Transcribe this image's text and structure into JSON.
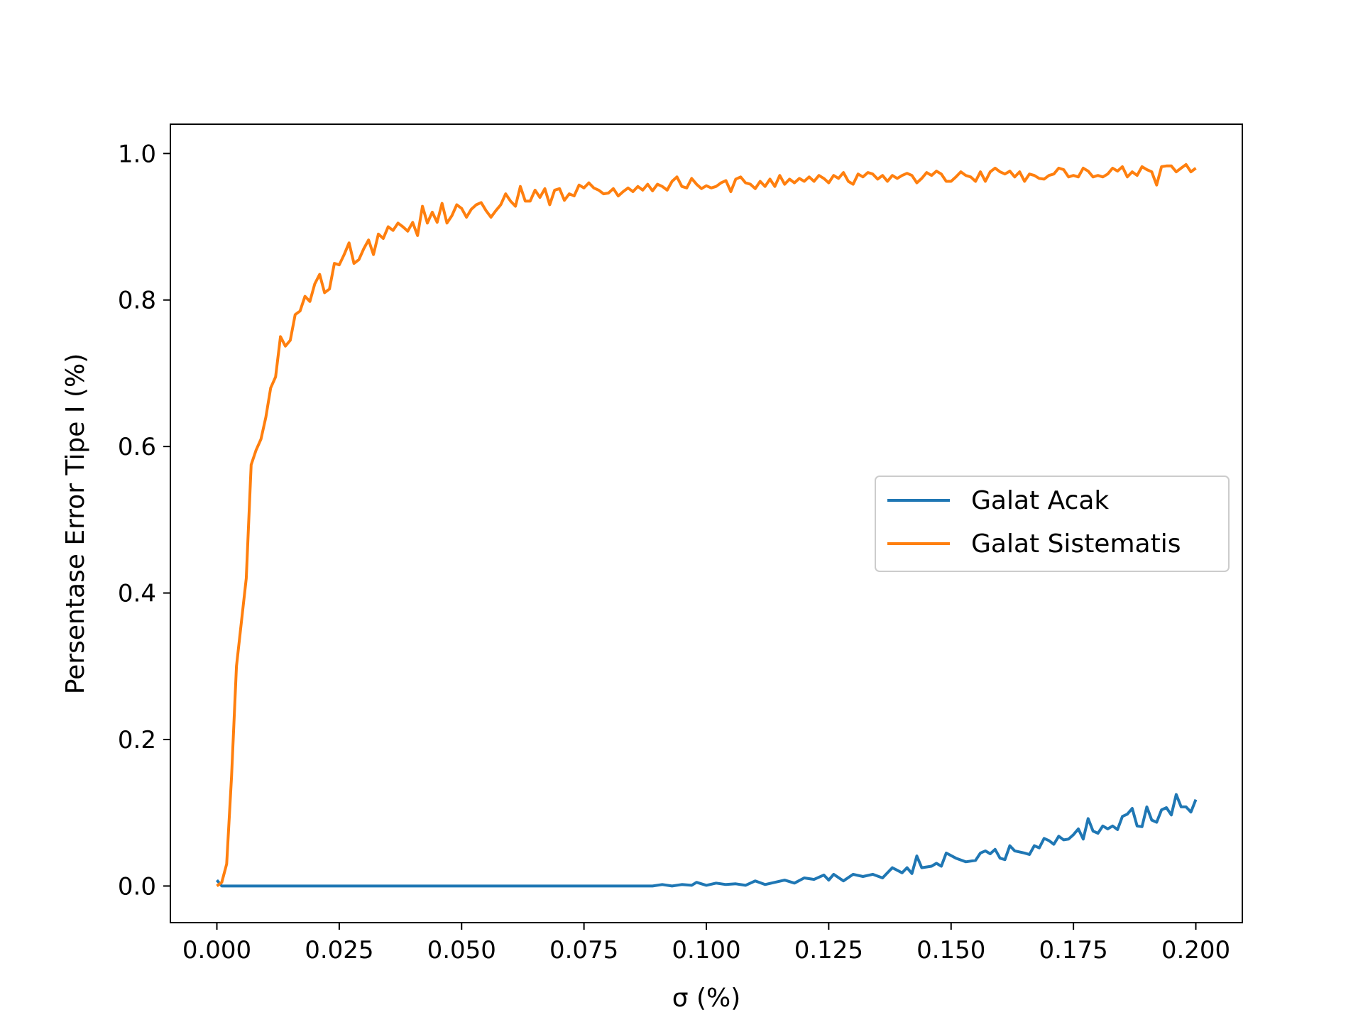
{
  "chart_data": {
    "type": "line",
    "title": "",
    "xlabel": "σ (%)",
    "ylabel": "Persentase Error Tipe I (%)",
    "xlim": [
      -0.0095,
      0.2095
    ],
    "ylim": [
      -0.05,
      1.04
    ],
    "xticks": [
      0.0,
      0.025,
      0.05,
      0.075,
      0.1,
      0.125,
      0.15,
      0.175,
      0.2
    ],
    "xtick_labels": [
      "0.000",
      "0.025",
      "0.050",
      "0.075",
      "0.100",
      "0.125",
      "0.150",
      "0.175",
      "0.200"
    ],
    "yticks": [
      0.0,
      0.2,
      0.4,
      0.6,
      0.8,
      1.0
    ],
    "ytick_labels": [
      "0.0",
      "0.2",
      "0.4",
      "0.6",
      "0.8",
      "1.0"
    ],
    "grid": false,
    "legend_position": "center-right",
    "series": [
      {
        "name": "Galat Acak",
        "color": "#1f77b4",
        "points": [
          [
            0.0,
            0.008
          ],
          [
            0.001,
            0.0
          ],
          [
            0.005,
            0.0
          ],
          [
            0.02,
            0.0
          ],
          [
            0.04,
            0.0
          ],
          [
            0.06,
            0.0
          ],
          [
            0.08,
            0.0
          ],
          [
            0.089,
            0.0
          ],
          [
            0.091,
            0.002
          ],
          [
            0.093,
            0.0
          ],
          [
            0.095,
            0.002
          ],
          [
            0.097,
            0.001
          ],
          [
            0.098,
            0.005
          ],
          [
            0.1,
            0.001
          ],
          [
            0.102,
            0.004
          ],
          [
            0.104,
            0.002
          ],
          [
            0.106,
            0.003
          ],
          [
            0.108,
            0.001
          ],
          [
            0.11,
            0.007
          ],
          [
            0.112,
            0.002
          ],
          [
            0.114,
            0.005
          ],
          [
            0.116,
            0.008
          ],
          [
            0.118,
            0.004
          ],
          [
            0.12,
            0.011
          ],
          [
            0.122,
            0.009
          ],
          [
            0.124,
            0.015
          ],
          [
            0.125,
            0.008
          ],
          [
            0.126,
            0.016
          ],
          [
            0.128,
            0.007
          ],
          [
            0.13,
            0.016
          ],
          [
            0.132,
            0.013
          ],
          [
            0.134,
            0.016
          ],
          [
            0.136,
            0.011
          ],
          [
            0.138,
            0.025
          ],
          [
            0.14,
            0.018
          ],
          [
            0.141,
            0.025
          ],
          [
            0.142,
            0.017
          ],
          [
            0.143,
            0.041
          ],
          [
            0.144,
            0.025
          ],
          [
            0.146,
            0.027
          ],
          [
            0.147,
            0.031
          ],
          [
            0.148,
            0.027
          ],
          [
            0.149,
            0.045
          ],
          [
            0.151,
            0.038
          ],
          [
            0.153,
            0.033
          ],
          [
            0.155,
            0.035
          ],
          [
            0.156,
            0.045
          ],
          [
            0.157,
            0.048
          ],
          [
            0.158,
            0.044
          ],
          [
            0.159,
            0.05
          ],
          [
            0.16,
            0.038
          ],
          [
            0.161,
            0.036
          ],
          [
            0.162,
            0.055
          ],
          [
            0.163,
            0.048
          ],
          [
            0.165,
            0.045
          ],
          [
            0.166,
            0.043
          ],
          [
            0.167,
            0.055
          ],
          [
            0.168,
            0.052
          ],
          [
            0.169,
            0.065
          ],
          [
            0.17,
            0.062
          ],
          [
            0.171,
            0.057
          ],
          [
            0.172,
            0.068
          ],
          [
            0.173,
            0.063
          ],
          [
            0.174,
            0.064
          ],
          [
            0.175,
            0.07
          ],
          [
            0.176,
            0.078
          ],
          [
            0.177,
            0.064
          ],
          [
            0.178,
            0.092
          ],
          [
            0.179,
            0.075
          ],
          [
            0.18,
            0.072
          ],
          [
            0.181,
            0.082
          ],
          [
            0.182,
            0.078
          ],
          [
            0.183,
            0.082
          ],
          [
            0.184,
            0.077
          ],
          [
            0.185,
            0.095
          ],
          [
            0.186,
            0.098
          ],
          [
            0.187,
            0.106
          ],
          [
            0.188,
            0.082
          ],
          [
            0.189,
            0.081
          ],
          [
            0.19,
            0.108
          ],
          [
            0.191,
            0.09
          ],
          [
            0.192,
            0.087
          ],
          [
            0.193,
            0.104
          ],
          [
            0.194,
            0.107
          ],
          [
            0.195,
            0.097
          ],
          [
            0.196,
            0.125
          ],
          [
            0.197,
            0.108
          ],
          [
            0.198,
            0.108
          ],
          [
            0.199,
            0.101
          ],
          [
            0.2,
            0.118
          ]
        ]
      },
      {
        "name": "Galat Sistematis",
        "color": "#ff7f0e",
        "points": [
          [
            0.0,
            0.0
          ],
          [
            0.001,
            0.005
          ],
          [
            0.002,
            0.03
          ],
          [
            0.003,
            0.15
          ],
          [
            0.004,
            0.3
          ],
          [
            0.005,
            0.36
          ],
          [
            0.006,
            0.42
          ],
          [
            0.007,
            0.575
          ],
          [
            0.008,
            0.595
          ],
          [
            0.009,
            0.61
          ],
          [
            0.01,
            0.64
          ],
          [
            0.011,
            0.68
          ],
          [
            0.012,
            0.695
          ],
          [
            0.013,
            0.75
          ],
          [
            0.014,
            0.737
          ],
          [
            0.015,
            0.745
          ],
          [
            0.016,
            0.78
          ],
          [
            0.017,
            0.785
          ],
          [
            0.018,
            0.805
          ],
          [
            0.019,
            0.798
          ],
          [
            0.02,
            0.822
          ],
          [
            0.021,
            0.835
          ],
          [
            0.022,
            0.81
          ],
          [
            0.023,
            0.815
          ],
          [
            0.024,
            0.85
          ],
          [
            0.025,
            0.848
          ],
          [
            0.026,
            0.862
          ],
          [
            0.027,
            0.878
          ],
          [
            0.028,
            0.85
          ],
          [
            0.029,
            0.855
          ],
          [
            0.03,
            0.87
          ],
          [
            0.031,
            0.882
          ],
          [
            0.032,
            0.862
          ],
          [
            0.033,
            0.89
          ],
          [
            0.034,
            0.884
          ],
          [
            0.035,
            0.9
          ],
          [
            0.036,
            0.895
          ],
          [
            0.037,
            0.905
          ],
          [
            0.038,
            0.9
          ],
          [
            0.039,
            0.894
          ],
          [
            0.04,
            0.906
          ],
          [
            0.041,
            0.888
          ],
          [
            0.042,
            0.928
          ],
          [
            0.043,
            0.905
          ],
          [
            0.044,
            0.92
          ],
          [
            0.045,
            0.906
          ],
          [
            0.046,
            0.932
          ],
          [
            0.047,
            0.905
          ],
          [
            0.048,
            0.915
          ],
          [
            0.049,
            0.93
          ],
          [
            0.05,
            0.925
          ],
          [
            0.051,
            0.913
          ],
          [
            0.052,
            0.924
          ],
          [
            0.053,
            0.93
          ],
          [
            0.054,
            0.933
          ],
          [
            0.055,
            0.922
          ],
          [
            0.056,
            0.913
          ],
          [
            0.057,
            0.922
          ],
          [
            0.058,
            0.93
          ],
          [
            0.059,
            0.945
          ],
          [
            0.06,
            0.935
          ],
          [
            0.061,
            0.928
          ],
          [
            0.062,
            0.955
          ],
          [
            0.063,
            0.935
          ],
          [
            0.064,
            0.935
          ],
          [
            0.065,
            0.95
          ],
          [
            0.066,
            0.94
          ],
          [
            0.067,
            0.952
          ],
          [
            0.068,
            0.93
          ],
          [
            0.069,
            0.95
          ],
          [
            0.07,
            0.952
          ],
          [
            0.071,
            0.936
          ],
          [
            0.072,
            0.945
          ],
          [
            0.073,
            0.942
          ],
          [
            0.074,
            0.957
          ],
          [
            0.075,
            0.953
          ],
          [
            0.076,
            0.96
          ],
          [
            0.077,
            0.953
          ],
          [
            0.078,
            0.95
          ],
          [
            0.079,
            0.945
          ],
          [
            0.08,
            0.946
          ],
          [
            0.081,
            0.952
          ],
          [
            0.082,
            0.942
          ],
          [
            0.083,
            0.948
          ],
          [
            0.084,
            0.953
          ],
          [
            0.085,
            0.948
          ],
          [
            0.086,
            0.955
          ],
          [
            0.087,
            0.95
          ],
          [
            0.088,
            0.958
          ],
          [
            0.089,
            0.949
          ],
          [
            0.09,
            0.958
          ],
          [
            0.091,
            0.955
          ],
          [
            0.092,
            0.95
          ],
          [
            0.093,
            0.962
          ],
          [
            0.094,
            0.968
          ],
          [
            0.095,
            0.955
          ],
          [
            0.096,
            0.953
          ],
          [
            0.097,
            0.966
          ],
          [
            0.098,
            0.958
          ],
          [
            0.099,
            0.952
          ],
          [
            0.1,
            0.956
          ],
          [
            0.101,
            0.953
          ],
          [
            0.102,
            0.955
          ],
          [
            0.103,
            0.96
          ],
          [
            0.104,
            0.963
          ],
          [
            0.105,
            0.948
          ],
          [
            0.106,
            0.965
          ],
          [
            0.107,
            0.968
          ],
          [
            0.108,
            0.96
          ],
          [
            0.109,
            0.958
          ],
          [
            0.11,
            0.952
          ],
          [
            0.111,
            0.962
          ],
          [
            0.112,
            0.955
          ],
          [
            0.113,
            0.965
          ],
          [
            0.114,
            0.955
          ],
          [
            0.115,
            0.97
          ],
          [
            0.116,
            0.958
          ],
          [
            0.117,
            0.965
          ],
          [
            0.118,
            0.96
          ],
          [
            0.119,
            0.966
          ],
          [
            0.12,
            0.962
          ],
          [
            0.121,
            0.968
          ],
          [
            0.122,
            0.962
          ],
          [
            0.123,
            0.97
          ],
          [
            0.124,
            0.966
          ],
          [
            0.125,
            0.96
          ],
          [
            0.126,
            0.97
          ],
          [
            0.127,
            0.966
          ],
          [
            0.128,
            0.974
          ],
          [
            0.129,
            0.962
          ],
          [
            0.13,
            0.958
          ],
          [
            0.131,
            0.972
          ],
          [
            0.132,
            0.968
          ],
          [
            0.133,
            0.974
          ],
          [
            0.134,
            0.972
          ],
          [
            0.135,
            0.965
          ],
          [
            0.136,
            0.97
          ],
          [
            0.137,
            0.962
          ],
          [
            0.138,
            0.97
          ],
          [
            0.139,
            0.966
          ],
          [
            0.14,
            0.97
          ],
          [
            0.141,
            0.973
          ],
          [
            0.142,
            0.97
          ],
          [
            0.143,
            0.96
          ],
          [
            0.144,
            0.966
          ],
          [
            0.145,
            0.974
          ],
          [
            0.146,
            0.97
          ],
          [
            0.147,
            0.976
          ],
          [
            0.148,
            0.972
          ],
          [
            0.149,
            0.962
          ],
          [
            0.15,
            0.962
          ],
          [
            0.151,
            0.968
          ],
          [
            0.152,
            0.975
          ],
          [
            0.153,
            0.97
          ],
          [
            0.154,
            0.968
          ],
          [
            0.155,
            0.962
          ],
          [
            0.156,
            0.975
          ],
          [
            0.157,
            0.962
          ],
          [
            0.158,
            0.975
          ],
          [
            0.159,
            0.98
          ],
          [
            0.16,
            0.975
          ],
          [
            0.161,
            0.972
          ],
          [
            0.162,
            0.976
          ],
          [
            0.163,
            0.968
          ],
          [
            0.164,
            0.975
          ],
          [
            0.165,
            0.962
          ],
          [
            0.166,
            0.972
          ],
          [
            0.167,
            0.97
          ],
          [
            0.168,
            0.966
          ],
          [
            0.169,
            0.965
          ],
          [
            0.17,
            0.97
          ],
          [
            0.171,
            0.972
          ],
          [
            0.172,
            0.98
          ],
          [
            0.173,
            0.978
          ],
          [
            0.174,
            0.968
          ],
          [
            0.175,
            0.97
          ],
          [
            0.176,
            0.968
          ],
          [
            0.177,
            0.98
          ],
          [
            0.178,
            0.976
          ],
          [
            0.179,
            0.968
          ],
          [
            0.18,
            0.97
          ],
          [
            0.181,
            0.968
          ],
          [
            0.182,
            0.972
          ],
          [
            0.183,
            0.98
          ],
          [
            0.184,
            0.976
          ],
          [
            0.185,
            0.982
          ],
          [
            0.186,
            0.968
          ],
          [
            0.187,
            0.975
          ],
          [
            0.188,
            0.97
          ],
          [
            0.189,
            0.982
          ],
          [
            0.19,
            0.978
          ],
          [
            0.191,
            0.975
          ],
          [
            0.192,
            0.957
          ],
          [
            0.193,
            0.982
          ],
          [
            0.194,
            0.983
          ],
          [
            0.195,
            0.983
          ],
          [
            0.196,
            0.975
          ],
          [
            0.197,
            0.98
          ],
          [
            0.198,
            0.985
          ],
          [
            0.199,
            0.975
          ],
          [
            0.2,
            0.98
          ]
        ]
      }
    ]
  }
}
